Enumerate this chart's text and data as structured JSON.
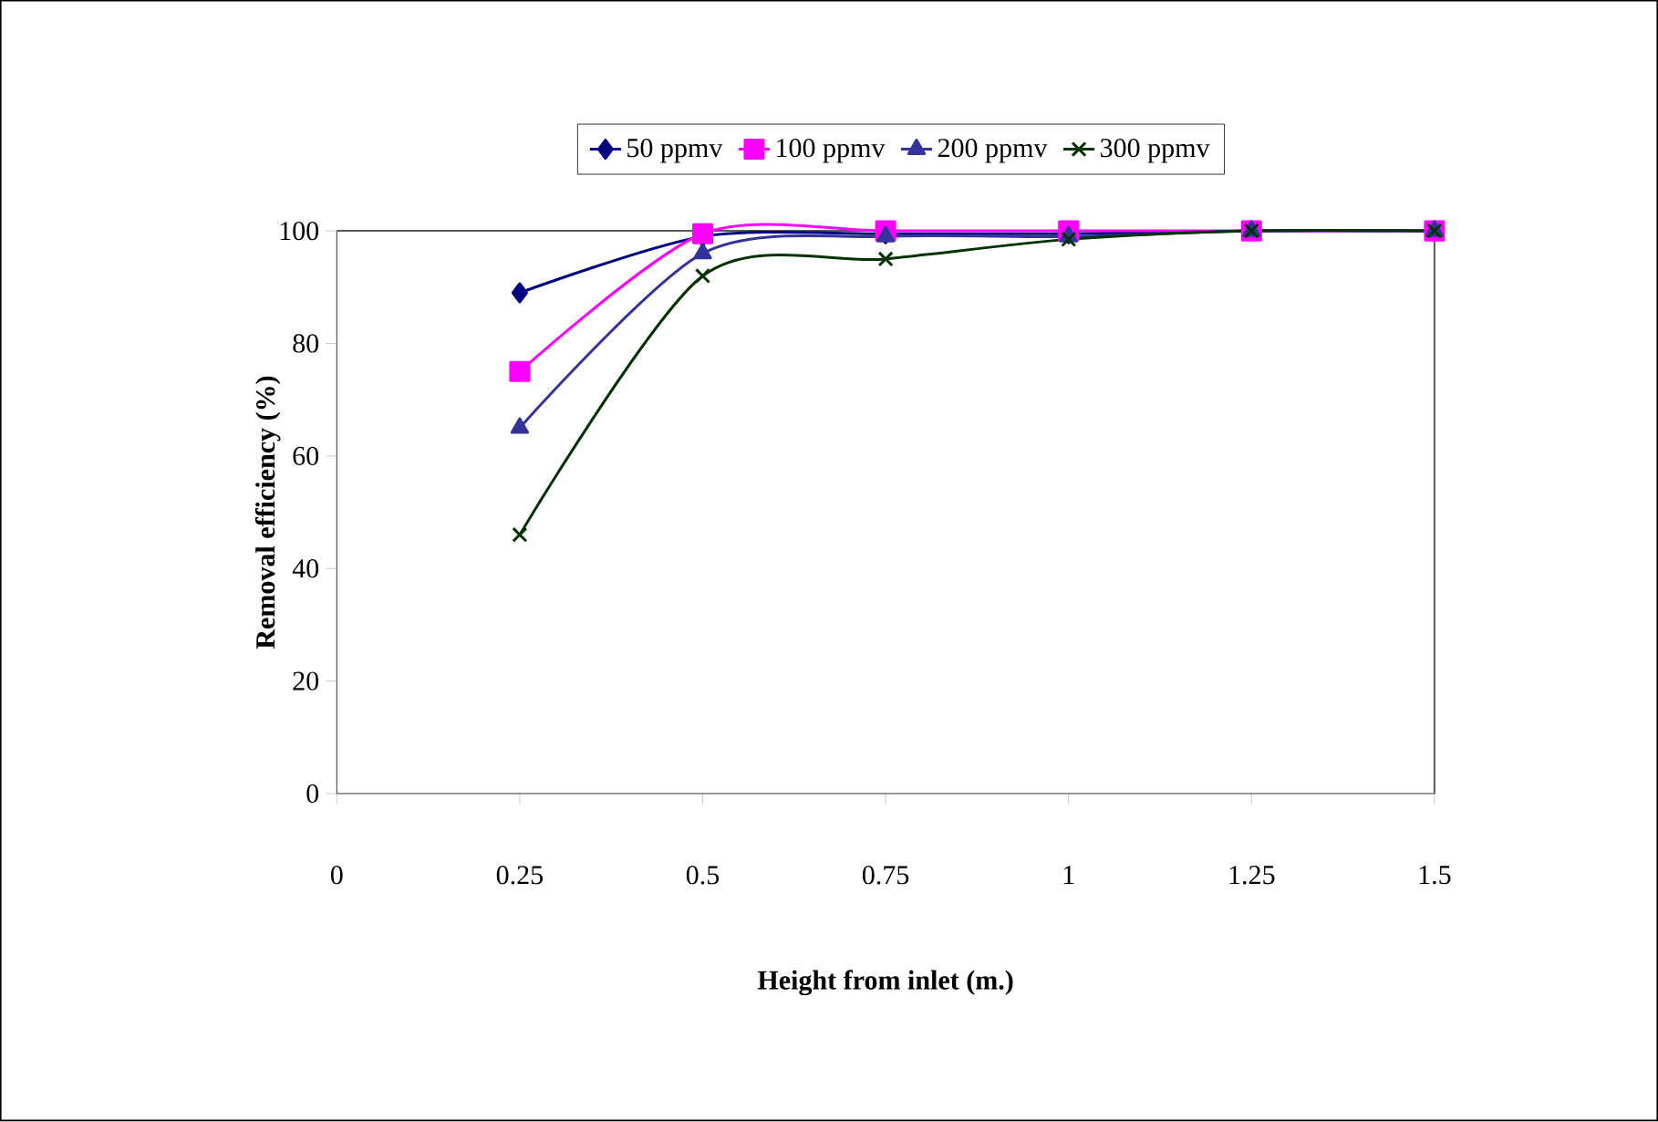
{
  "chart_data": {
    "type": "line",
    "xlabel": "Height from inlet (m.)",
    "ylabel": "Removal efficiency (%)",
    "x": [
      0.25,
      0.5,
      0.75,
      1,
      1.25,
      1.5
    ],
    "series": [
      {
        "name": "50 ppmv",
        "color": "#000080",
        "marker": "diamond",
        "values": [
          89,
          99,
          99.5,
          99.5,
          100,
          100
        ]
      },
      {
        "name": "100 ppmv",
        "color": "#ff00ff",
        "marker": "square",
        "values": [
          75,
          99.5,
          100,
          100,
          100,
          100
        ]
      },
      {
        "name": "200 ppmv",
        "color": "#333399",
        "marker": "triangle",
        "values": [
          65,
          96,
          99,
          99,
          100,
          100
        ]
      },
      {
        "name": "300 ppmv",
        "color": "#003300",
        "marker": "cross",
        "values": [
          46,
          92,
          95,
          98.5,
          100,
          100
        ]
      }
    ],
    "xlim": [
      0,
      1.5
    ],
    "ylim": [
      0,
      100
    ],
    "xticks": [
      0,
      0.25,
      0.5,
      0.75,
      1,
      1.25,
      1.5
    ],
    "yticks": [
      0,
      20,
      40,
      60,
      80,
      100
    ],
    "grid": false,
    "legend": "top",
    "line_style": "solid"
  }
}
